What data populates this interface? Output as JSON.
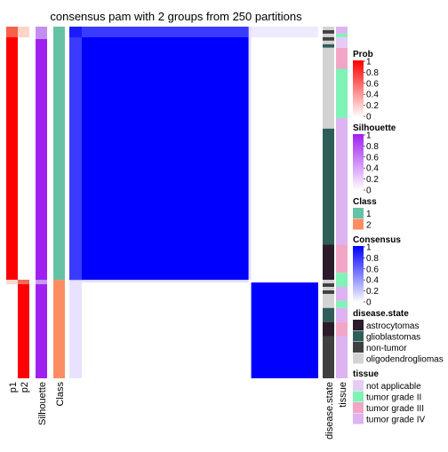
{
  "chart_data": {
    "type": "heatmap",
    "title": "consensus pam with 2 groups from 250 partitions",
    "n_samples": 100,
    "groups": [
      {
        "class": 1,
        "start": 0,
        "end": 72
      },
      {
        "class": 2,
        "start": 72,
        "end": 100
      }
    ],
    "annotation_tracks": [
      {
        "key": "p1",
        "label": "p1"
      },
      {
        "key": "p2",
        "label": "p2"
      },
      {
        "key": "silhouette",
        "label": "Silhouette"
      },
      {
        "key": "class",
        "label": "Class"
      }
    ],
    "right_tracks": [
      {
        "key": "disease_state",
        "label": "disease.state"
      },
      {
        "key": "tissue",
        "label": "tissue"
      }
    ],
    "segments": {
      "disease_state": [
        {
          "from": 0,
          "to": 1,
          "value": "oligodendrogliomas"
        },
        {
          "from": 1,
          "to": 2,
          "value": "non-tumor"
        },
        {
          "from": 2,
          "to": 3,
          "value": "oligodendrogliomas"
        },
        {
          "from": 3,
          "to": 4,
          "value": "non-tumor"
        },
        {
          "from": 4,
          "to": 5,
          "value": "oligodendrogliomas"
        },
        {
          "from": 5,
          "to": 6,
          "value": "glioblastomas"
        },
        {
          "from": 6,
          "to": 29,
          "value": "oligodendrogliomas"
        },
        {
          "from": 29,
          "to": 62,
          "value": "glioblastomas"
        },
        {
          "from": 62,
          "to": 72,
          "value": "astrocytomas"
        },
        {
          "from": 72,
          "to": 73,
          "value": "oligodendrogliomas"
        },
        {
          "from": 73,
          "to": 74,
          "value": "non-tumor"
        },
        {
          "from": 74,
          "to": 75,
          "value": "oligodendrogliomas"
        },
        {
          "from": 75,
          "to": 76,
          "value": "non-tumor"
        },
        {
          "from": 76,
          "to": 80,
          "value": "oligodendrogliomas"
        },
        {
          "from": 80,
          "to": 84,
          "value": "glioblastomas"
        },
        {
          "from": 84,
          "to": 88,
          "value": "astrocytomas"
        },
        {
          "from": 88,
          "to": 100,
          "value": "non-tumor"
        }
      ],
      "tissue": [
        {
          "from": 0,
          "to": 2,
          "value": "tumor grade IV"
        },
        {
          "from": 2,
          "to": 3,
          "value": "tumor grade II"
        },
        {
          "from": 3,
          "to": 6,
          "value": "not applicable"
        },
        {
          "from": 6,
          "to": 12,
          "value": "tumor grade III"
        },
        {
          "from": 12,
          "to": 26,
          "value": "tumor grade II"
        },
        {
          "from": 26,
          "to": 62,
          "value": "tumor grade IV"
        },
        {
          "from": 62,
          "to": 70,
          "value": "tumor grade III"
        },
        {
          "from": 70,
          "to": 72,
          "value": "tumor grade II"
        },
        {
          "from": 72,
          "to": 74,
          "value": "tumor grade II"
        },
        {
          "from": 74,
          "to": 78,
          "value": "tumor grade IV"
        },
        {
          "from": 78,
          "to": 80,
          "value": "tumor grade II"
        },
        {
          "from": 80,
          "to": 84,
          "value": "tumor grade IV"
        },
        {
          "from": 84,
          "to": 88,
          "value": "tumor grade III"
        },
        {
          "from": 88,
          "to": 100,
          "value": "tumor grade IV"
        }
      ]
    },
    "legends": [
      {
        "title": "Prob",
        "type": "gradient",
        "colors": [
          "#ffffff",
          "#ff0000"
        ],
        "ticks": [
          "1",
          "0.8",
          "0.6",
          "0.4",
          "0.2",
          "0"
        ]
      },
      {
        "title": "Silhouette",
        "type": "gradient",
        "colors": [
          "#ffffff",
          "#a020f0"
        ],
        "ticks": [
          "1",
          "0.8",
          "0.6",
          "0.4",
          "0.2",
          "0"
        ]
      },
      {
        "title": "Class",
        "type": "discrete",
        "items": [
          {
            "label": "1",
            "color": "#66c2a5"
          },
          {
            "label": "2",
            "color": "#fc8d62"
          }
        ]
      },
      {
        "title": "Consensus",
        "type": "gradient",
        "colors": [
          "#ffffff",
          "#0000ff"
        ],
        "ticks": [
          "1",
          "0.8",
          "0.6",
          "0.4",
          "0.2",
          "0"
        ]
      },
      {
        "title": "disease.state",
        "type": "discrete",
        "items": [
          {
            "label": "astrocytomas",
            "color": "#2b1b2b"
          },
          {
            "label": "glioblastomas",
            "color": "#2f5e5a"
          },
          {
            "label": "non-tumor",
            "color": "#404040"
          },
          {
            "label": "oligodendrogliomas",
            "color": "#d3d3d3"
          }
        ]
      },
      {
        "title": "tissue",
        "type": "discrete",
        "items": [
          {
            "label": "not applicable",
            "color": "#e6ccf5"
          },
          {
            "label": "tumor grade II",
            "color": "#7ff2b6"
          },
          {
            "label": "tumor grade III",
            "color": "#f2a6c6"
          },
          {
            "label": "tumor grade IV",
            "color": "#ddb3f2"
          }
        ]
      }
    ],
    "colors": {
      "prob_high": "#ff0000",
      "silhouette": "#a020f0",
      "consensus_high": "#0000ff"
    }
  }
}
